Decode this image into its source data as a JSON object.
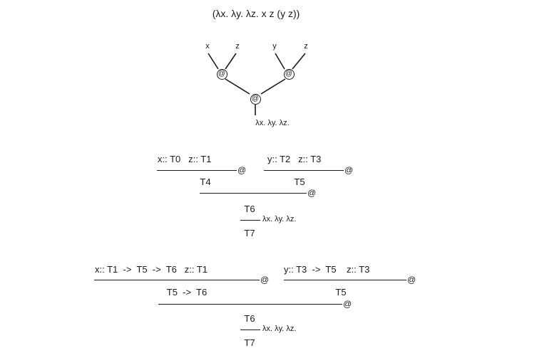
{
  "title": "(λx. λy. λz. x z (y z))",
  "tree": {
    "leaves": [
      "x",
      "z",
      "y",
      "z"
    ],
    "app_symbol": "@",
    "root": "λx. λy. λz."
  },
  "derivation1": {
    "left_premises": "x:: T0   z:: T1",
    "right_premises": "y:: T2   z:: T3",
    "left_result": "T4",
    "right_result": "T5",
    "combined": "T6",
    "abstraction": "λx. λy. λz.",
    "final": "T7",
    "app_symbol": "@"
  },
  "derivation2": {
    "left_premises": "x:: T1  ->  T5  ->  T6   z:: T1",
    "right_premises": "y:: T3  ->  T5    z:: T3",
    "left_result": "T5  ->  T6",
    "right_result": "T5",
    "combined": "T6",
    "abstraction": "λx. λy. λz.",
    "final": "T7",
    "app_symbol": "@"
  }
}
